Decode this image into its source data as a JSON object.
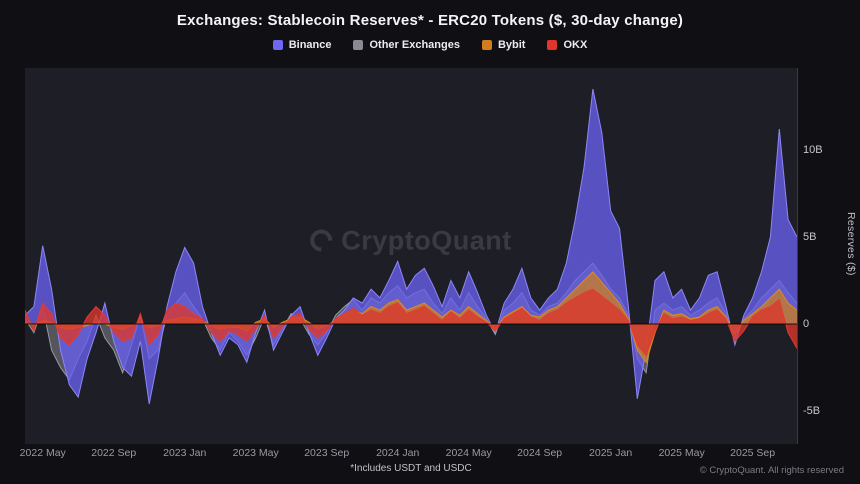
{
  "header": {
    "title": "Exchanges: Stablecoin Reserves* - ERC20 Tokens ($, 30-day change)"
  },
  "legend": [
    {
      "label": "Binance",
      "color": "#6f66f2"
    },
    {
      "label": "Other Exchanges",
      "color": "#8a8a94"
    },
    {
      "label": "Bybit",
      "color": "#cf7d1d"
    },
    {
      "label": "OKX",
      "color": "#df352a"
    }
  ],
  "watermark": "CryptoQuant",
  "footnote": "*Includes USDT and USDC",
  "copyright": "© CryptoQuant. All rights reserved",
  "y_axis": {
    "label": "Reserves ($)",
    "ticks": [
      {
        "label": "10B",
        "value": 10
      },
      {
        "label": "5B",
        "value": 5
      },
      {
        "label": "0",
        "value": 0
      },
      {
        "label": "-5B",
        "value": -5
      }
    ]
  },
  "chart_data": {
    "type": "area",
    "title": "Exchanges: Stablecoin Reserves* - ERC20 Tokens ($, 30-day change)",
    "ylabel": "Reserves ($)",
    "unit": "billions USD",
    "ylim": [
      -7,
      14.7
    ],
    "x_start": "2022-04",
    "x_step": "half-month per index",
    "grid": false,
    "legend_position": "top",
    "x_ticks": [
      {
        "label": "2022 May",
        "index": 2
      },
      {
        "label": "2022 Sep",
        "index": 10
      },
      {
        "label": "2023 Jan",
        "index": 18
      },
      {
        "label": "2023 May",
        "index": 26
      },
      {
        "label": "2023 Sep",
        "index": 34
      },
      {
        "label": "2024 Jan",
        "index": 42
      },
      {
        "label": "2024 May",
        "index": 50
      },
      {
        "label": "2024 Sep",
        "index": 58
      },
      {
        "label": "2025 Jan",
        "index": 66
      },
      {
        "label": "2025 May",
        "index": 74
      },
      {
        "label": "2025 Sep",
        "index": 82
      }
    ],
    "series": [
      {
        "name": "Other Exchanges",
        "color": "#9a9aa3",
        "fill": "rgba(140,140,150,0.5)",
        "values": [
          0.3,
          -0.5,
          1.0,
          -1.5,
          -2.5,
          -3.2,
          -2.0,
          -1.0,
          0.5,
          -0.8,
          -1.5,
          -2.8,
          -1.2,
          0.5,
          -2.0,
          -1.5,
          0.5,
          1.2,
          1.8,
          1.0,
          0.3,
          -0.8,
          -1.5,
          -0.5,
          -1.0,
          -1.8,
          -0.8,
          0.4,
          -1.2,
          -0.3,
          0.6,
          0.3,
          -0.6,
          -1.2,
          -0.5,
          0.5,
          1.0,
          1.4,
          0.8,
          1.5,
          1.2,
          1.8,
          2.2,
          1.5,
          1.8,
          2.0,
          1.2,
          0.6,
          1.5,
          0.8,
          1.8,
          1.0,
          0.3,
          -0.6,
          0.8,
          1.2,
          1.8,
          0.8,
          0.5,
          1.0,
          1.2,
          1.8,
          2.5,
          3.0,
          3.5,
          2.8,
          2.0,
          1.5,
          0.5,
          -2.0,
          -2.8,
          0.8,
          1.2,
          0.8,
          1.0,
          0.5,
          0.8,
          1.2,
          1.5,
          0.6,
          -0.8,
          0.3,
          0.8,
          1.5,
          2.0,
          2.5,
          1.8,
          1.2
        ]
      },
      {
        "name": "Binance",
        "color": "#8d86f7",
        "fill": "rgba(104,96,238,0.78)",
        "values": [
          0.5,
          1.0,
          4.5,
          2.0,
          -1.5,
          -3.5,
          -4.2,
          -2.0,
          -0.5,
          1.2,
          -1.0,
          -2.5,
          -3.0,
          -1.0,
          -4.6,
          -2.0,
          1.0,
          3.0,
          4.4,
          3.5,
          1.0,
          -0.5,
          -1.8,
          -0.8,
          -1.2,
          -2.2,
          -0.5,
          0.8,
          -1.5,
          -0.5,
          0.5,
          1.0,
          -0.5,
          -1.8,
          -0.8,
          0.3,
          0.8,
          1.5,
          1.2,
          2.0,
          1.5,
          2.5,
          3.6,
          2.0,
          2.8,
          3.2,
          2.2,
          1.0,
          2.5,
          1.5,
          3.0,
          1.8,
          0.5,
          -0.5,
          1.2,
          2.0,
          3.2,
          1.5,
          0.8,
          1.5,
          2.0,
          3.5,
          6.0,
          9.0,
          13.5,
          11.0,
          6.5,
          5.5,
          1.0,
          -4.3,
          -1.5,
          2.5,
          3.0,
          1.5,
          2.0,
          0.8,
          1.5,
          2.8,
          3.0,
          1.0,
          -1.2,
          0.5,
          1.5,
          3.0,
          5.0,
          11.2,
          6.0,
          5.0
        ]
      },
      {
        "name": "Bybit",
        "color": "#e08a1e",
        "fill": "rgba(205,125,30,0.75)",
        "values": [
          0.1,
          -0.1,
          0.2,
          0.1,
          -0.2,
          -0.3,
          -0.2,
          -0.1,
          0.1,
          0.0,
          -0.2,
          -0.3,
          -0.1,
          0.1,
          -0.2,
          -0.1,
          0.2,
          0.3,
          0.4,
          0.3,
          0.2,
          -0.1,
          -0.3,
          -0.2,
          -0.2,
          -0.4,
          0.1,
          0.3,
          -0.2,
          0.1,
          0.3,
          0.4,
          0.1,
          -0.3,
          -0.1,
          0.2,
          0.5,
          0.8,
          0.6,
          1.0,
          0.8,
          1.2,
          1.4,
          0.8,
          1.0,
          1.2,
          0.8,
          0.4,
          0.8,
          0.5,
          1.0,
          0.6,
          0.2,
          -0.3,
          0.4,
          0.7,
          1.0,
          0.5,
          0.4,
          0.8,
          1.0,
          1.5,
          2.0,
          2.5,
          3.0,
          2.4,
          1.8,
          1.2,
          0.3,
          -1.5,
          -2.2,
          -0.5,
          0.8,
          0.5,
          0.6,
          0.3,
          0.4,
          0.8,
          1.0,
          0.4,
          -0.6,
          0.2,
          0.6,
          1.0,
          1.5,
          2.0,
          1.2,
          0.8
        ]
      },
      {
        "name": "OKX",
        "color": "#e53a2e",
        "fill": "rgba(220,55,45,0.78)",
        "values": [
          0.8,
          -0.4,
          1.2,
          0.6,
          -0.8,
          -1.2,
          -0.6,
          0.4,
          1.0,
          0.5,
          -0.5,
          -1.0,
          -0.8,
          0.6,
          -1.2,
          -0.6,
          0.8,
          1.2,
          1.0,
          0.6,
          0.3,
          -0.5,
          -1.0,
          -0.4,
          -0.6,
          -1.0,
          -0.3,
          0.5,
          -0.8,
          -0.2,
          0.4,
          0.6,
          -0.3,
          -0.8,
          -0.4,
          0.3,
          0.6,
          0.9,
          0.5,
          0.8,
          0.6,
          1.0,
          1.2,
          0.6,
          0.8,
          1.0,
          0.6,
          0.2,
          0.7,
          0.3,
          0.8,
          0.4,
          0.1,
          -0.4,
          0.3,
          0.6,
          0.9,
          0.4,
          0.2,
          0.6,
          0.8,
          1.2,
          1.5,
          1.8,
          2.0,
          1.6,
          1.2,
          0.8,
          0.2,
          -1.2,
          -1.8,
          -0.4,
          0.6,
          0.3,
          0.4,
          0.2,
          0.3,
          0.6,
          0.8,
          0.3,
          -1.0,
          -0.4,
          0.4,
          0.8,
          1.0,
          1.4,
          -0.5,
          -1.4
        ]
      }
    ]
  }
}
